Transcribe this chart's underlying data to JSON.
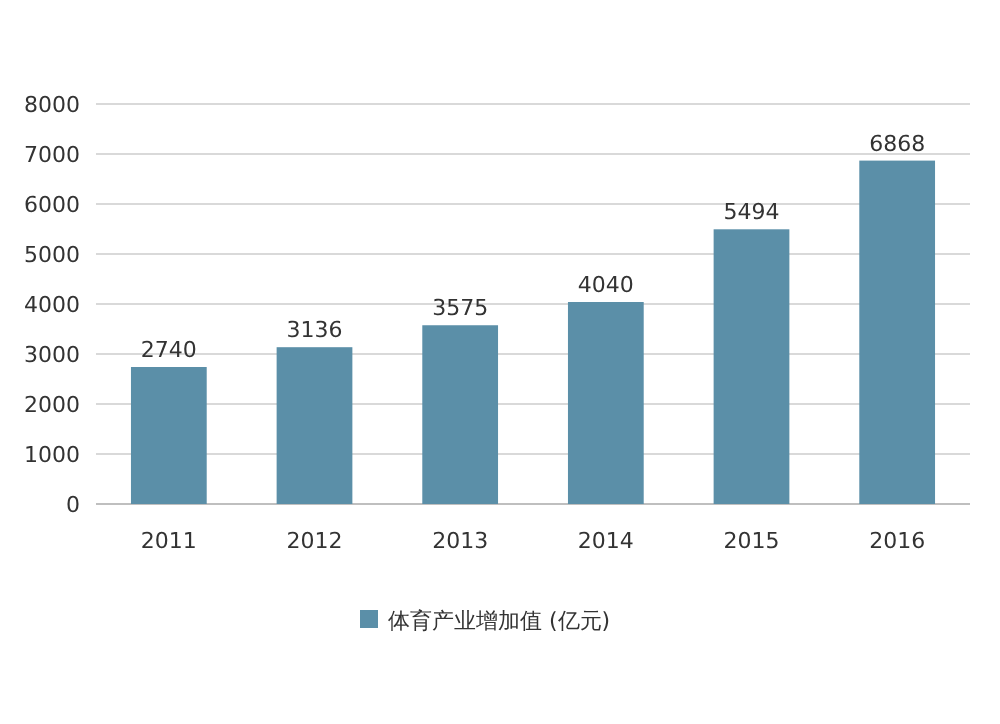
{
  "chart_data": {
    "type": "bar",
    "categories": [
      "2011",
      "2012",
      "2013",
      "2014",
      "2015",
      "2016"
    ],
    "series": [
      {
        "name": "体育产业增加值 (亿元)",
        "color": "#5b8fa8",
        "values": [
          2740,
          3136,
          3575,
          4040,
          5494,
          6868
        ]
      }
    ],
    "ylim": [
      0,
      8000
    ],
    "yticks": [
      0,
      1000,
      2000,
      3000,
      4000,
      5000,
      6000,
      7000,
      8000
    ],
    "grid": "y",
    "legend": "bottom",
    "data_labels": true
  }
}
